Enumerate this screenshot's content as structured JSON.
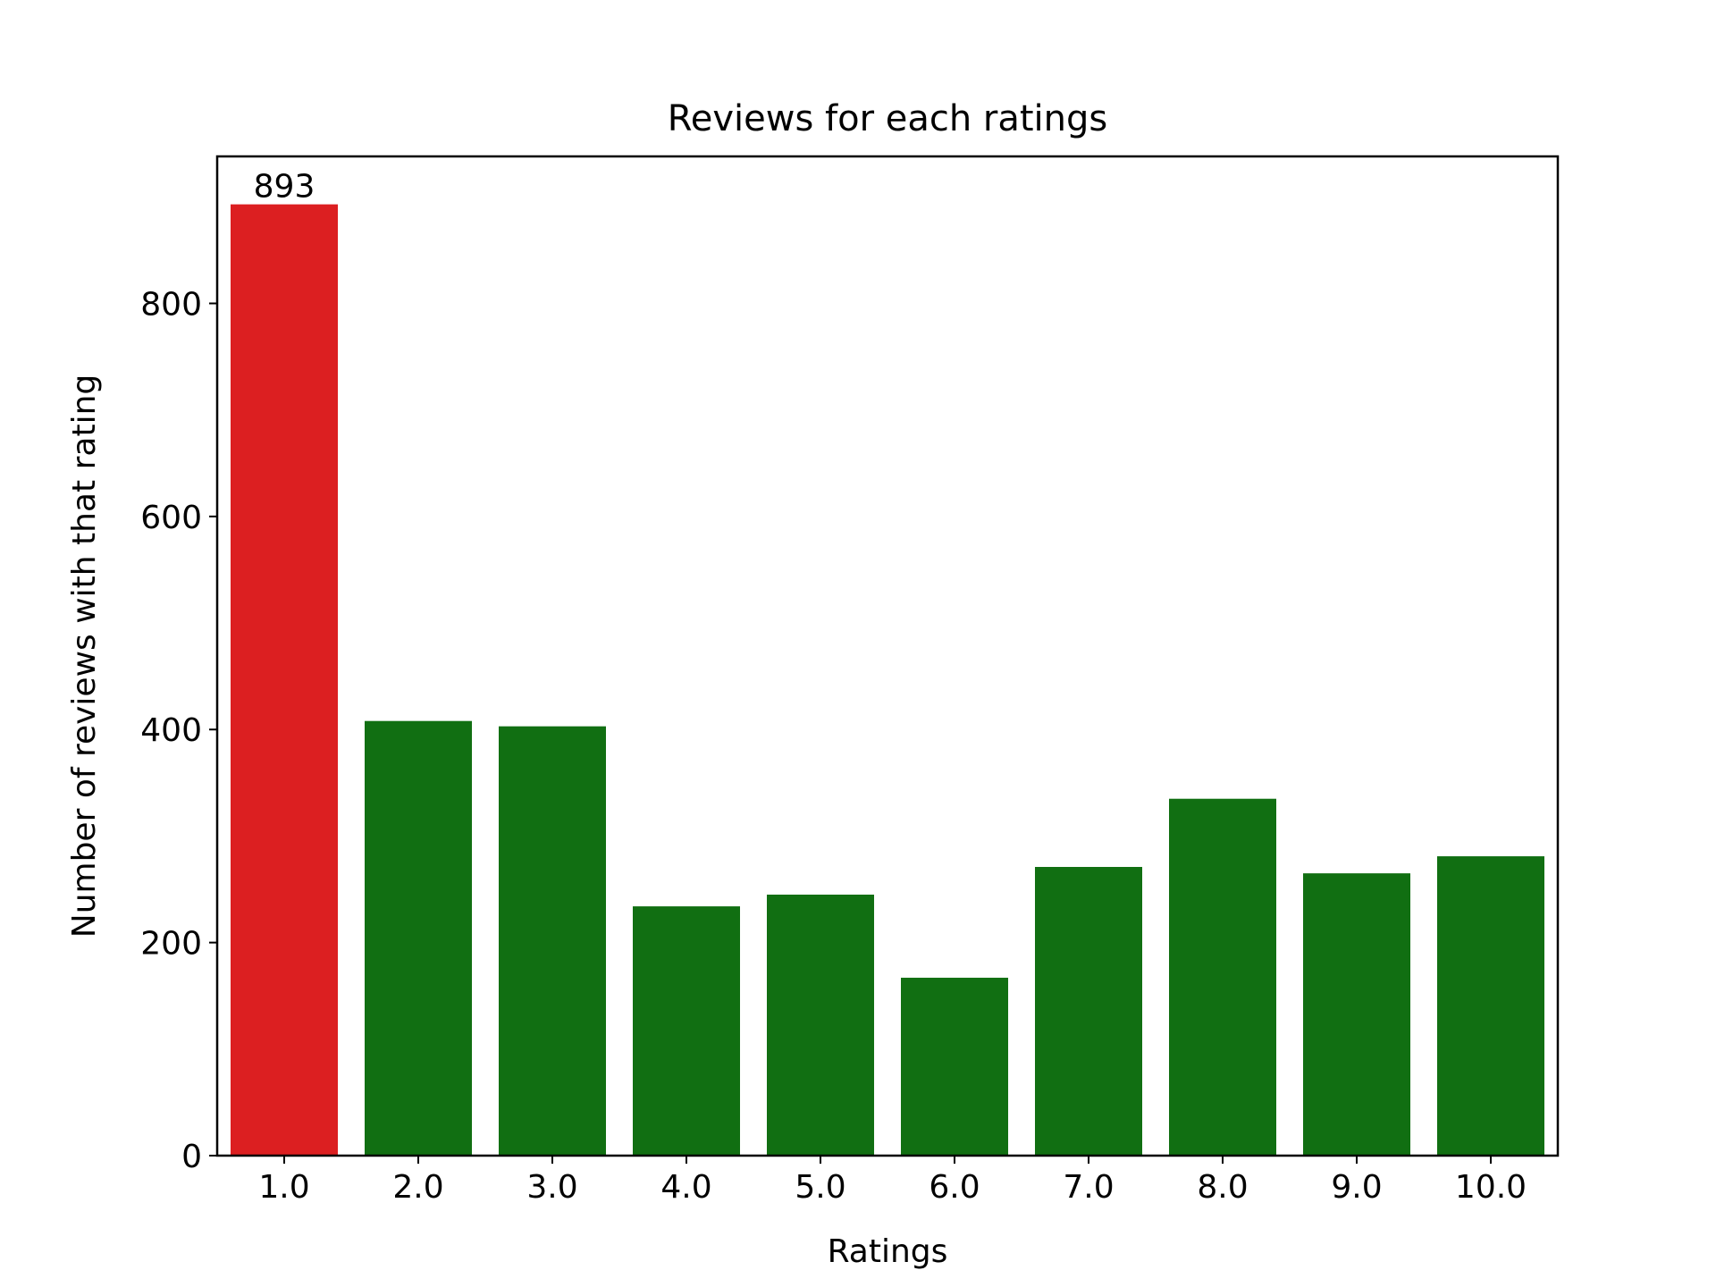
{
  "chart_data": {
    "type": "bar",
    "title": "Reviews for each ratings",
    "xlabel": "Ratings",
    "ylabel": "Number of reviews with that rating",
    "categories": [
      "1.0",
      "2.0",
      "3.0",
      "4.0",
      "5.0",
      "6.0",
      "7.0",
      "8.0",
      "9.0",
      "10.0"
    ],
    "values": [
      893,
      408,
      403,
      234,
      245,
      167,
      271,
      335,
      265,
      281
    ],
    "ylim": [
      0,
      938
    ],
    "yticks": [
      0,
      200,
      400,
      600,
      800
    ],
    "grid": false,
    "legend": "none",
    "bar_colors": [
      "#dc1f21",
      "#116f12",
      "#116f12",
      "#116f12",
      "#116f12",
      "#116f12",
      "#116f12",
      "#116f12",
      "#116f12",
      "#116f12"
    ],
    "data_labels": [
      {
        "category": "1.0",
        "text": "893"
      }
    ]
  }
}
